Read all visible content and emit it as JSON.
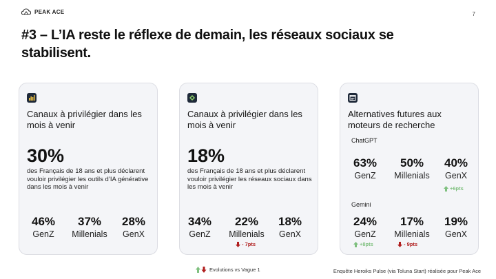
{
  "header": {
    "brand": "PEAK ACE",
    "page_number": "7",
    "title": "#3 – L’IA reste le réflexe de demain, les réseaux sociaux se stabilisent."
  },
  "cards": [
    {
      "icon": "bar-chart-icon",
      "title": "Canaux à privilégier dans les mois à venir",
      "big_value": "30%",
      "description": "des Français de 18 ans et plus déclarent vouloir privilégier les outils d’IA générative dans les mois à venir",
      "stats": [
        {
          "value": "46%",
          "label": "GenZ"
        },
        {
          "value": "37%",
          "label": "Millenials"
        },
        {
          "value": "28%",
          "label": "GenX"
        }
      ]
    },
    {
      "icon": "share-icon",
      "title": "Canaux à privilégier dans les mois à venir",
      "big_value": "18%",
      "description": "des Français de 18 ans et plus déclarent vouloir privilégier les réseaux sociaux dans les mois à venir",
      "stats": [
        {
          "value": "34%",
          "label": "GenZ"
        },
        {
          "value": "22%",
          "label": "Millenials",
          "delta": "- 7pts"
        },
        {
          "value": "18%",
          "label": "GenX"
        }
      ]
    },
    {
      "icon": "browser-icon",
      "title": "Alternatives futures aux moteurs de recherche",
      "groups": [
        {
          "name": "ChatGPT",
          "stats": [
            {
              "value": "63%",
              "label": "GenZ"
            },
            {
              "value": "50%",
              "label": "Millenials"
            },
            {
              "value": "40%",
              "label": "GenX",
              "delta": "+6pts"
            }
          ]
        },
        {
          "name": "Gemini",
          "stats": [
            {
              "value": "24%",
              "label": "GenZ",
              "delta": "+8pts"
            },
            {
              "value": "17%",
              "label": "Millenials",
              "delta": "- 9pts"
            },
            {
              "value": "19%",
              "label": "GenX"
            }
          ]
        }
      ]
    }
  ],
  "footer": {
    "legend": "Evolutions vs Vague 1",
    "source": "Enquête Heroiks Pulse (via Toluna Start) réalisée pour Peak Ace"
  },
  "colors": {
    "up": "#7fc07f",
    "down": "#b01e1e",
    "card_bg": "#f4f5f8"
  }
}
